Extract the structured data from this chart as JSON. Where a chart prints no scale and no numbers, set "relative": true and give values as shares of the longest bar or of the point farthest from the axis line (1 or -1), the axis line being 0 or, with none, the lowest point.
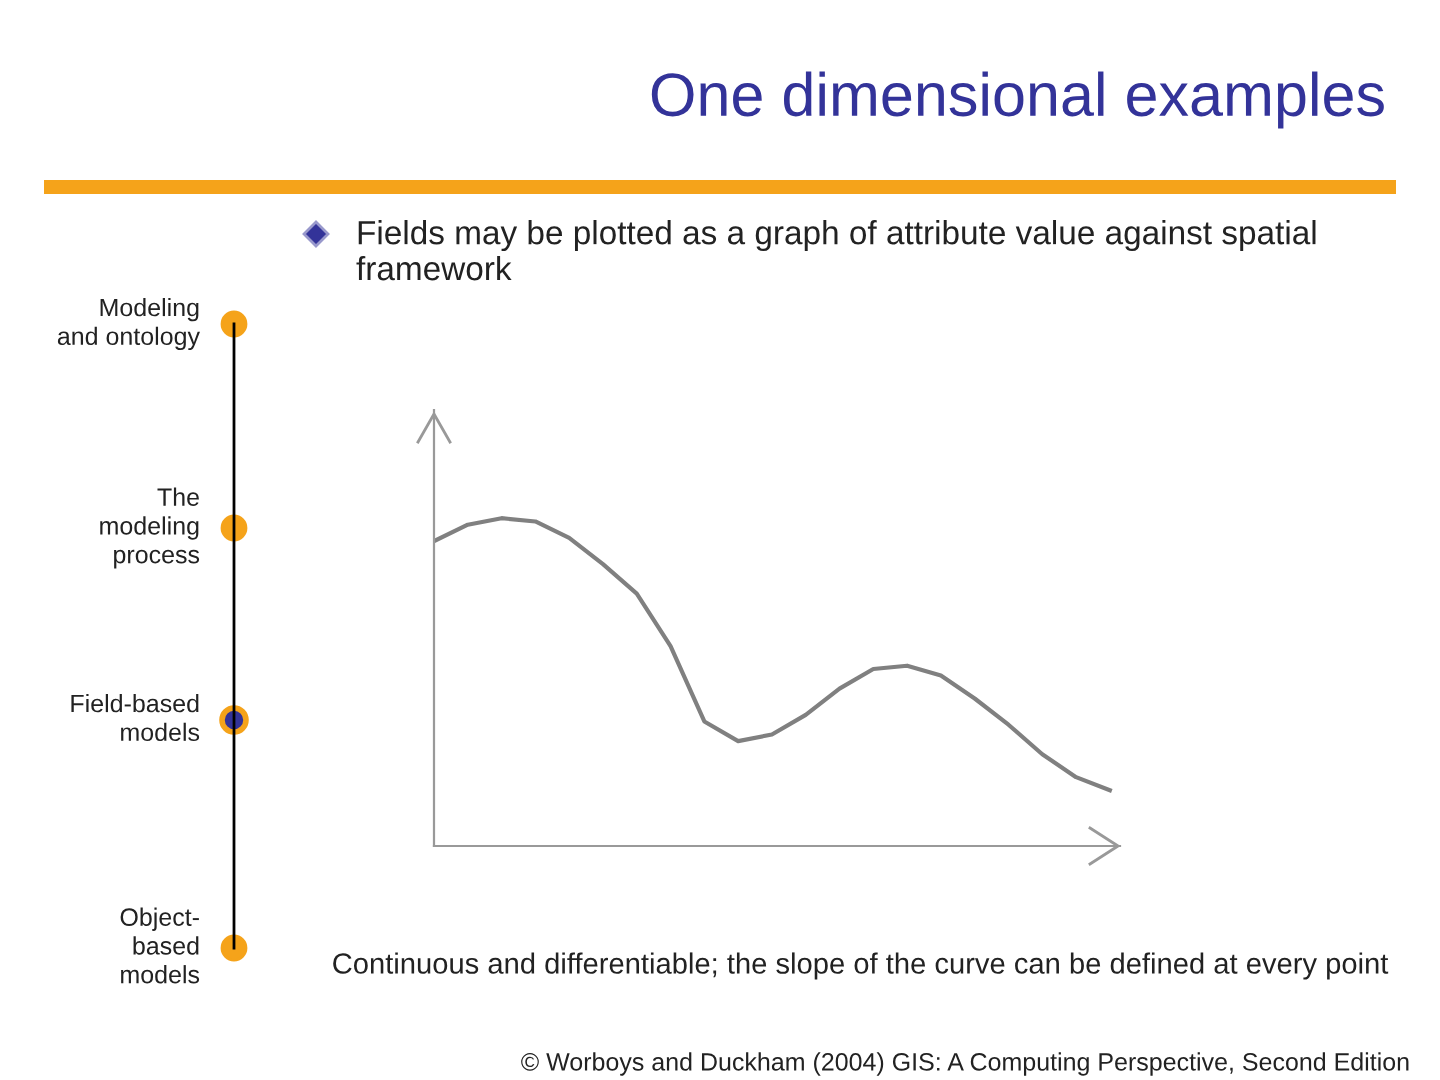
{
  "chart_data": {
    "type": "line",
    "relative": true,
    "title": "One dimensional examples",
    "subtitle": "Fields may be plotted as a graph of attribute value against spatial framework",
    "categories": [
      null,
      null,
      null,
      null,
      null,
      null,
      null,
      null,
      null,
      null,
      null,
      null,
      null,
      null,
      null,
      null,
      null,
      null,
      null,
      null,
      null
    ],
    "series": [
      {
        "color": "#808080",
        "values": [
          0.93,
          0.98,
          1.0,
          0.99,
          0.94,
          0.86,
          0.77,
          0.61,
          0.38,
          0.32,
          0.34,
          0.4,
          0.48,
          0.54,
          0.55,
          0.52,
          0.45,
          0.37,
          0.28,
          0.21,
          0.17
        ]
      }
    ],
    "annotations": [
      "Continuous and differentiable; the slope of the curve can be defined at every point",
      "© Worboys and Duckham (2004) GIS: A Computing Perspective, Second Edition",
      "Modeling\nand ontology",
      "The\nmodeling\nprocess",
      "Field-based\nmodels",
      "Object-\nbased\nmodels"
    ],
    "grid": false,
    "legend": false,
    "marker": "none",
    "line_style": "solid"
  }
}
